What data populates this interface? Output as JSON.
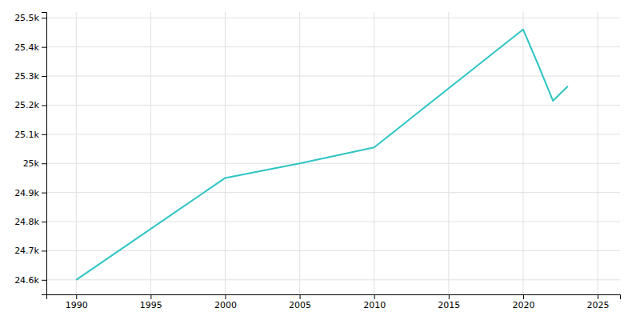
{
  "chart_data": {
    "type": "line",
    "x": [
      1990,
      2000,
      2005,
      2010,
      2020,
      2021,
      2022,
      2023
    ],
    "values": [
      24600,
      24950,
      25000,
      25055,
      25460,
      25340,
      25215,
      25265
    ],
    "color": "#2EC4C4",
    "xlim": [
      1988,
      2026.5
    ],
    "ylim": [
      24550,
      25520
    ],
    "xticks": [
      1990,
      1995,
      2000,
      2005,
      2010,
      2015,
      2020,
      2025
    ],
    "yticks": [
      {
        "value": 24600,
        "label": "24.6k"
      },
      {
        "value": 24700,
        "label": "24.7k"
      },
      {
        "value": 24800,
        "label": "24.8k"
      },
      {
        "value": 24900,
        "label": "24.9k"
      },
      {
        "value": 25000,
        "label": "25k"
      },
      {
        "value": 25100,
        "label": "25.1k"
      },
      {
        "value": 25200,
        "label": "25.2k"
      },
      {
        "value": 25300,
        "label": "25.3k"
      },
      {
        "value": 25400,
        "label": "25.4k"
      },
      {
        "value": 25500,
        "label": "25.5k"
      }
    ],
    "grid": true
  }
}
